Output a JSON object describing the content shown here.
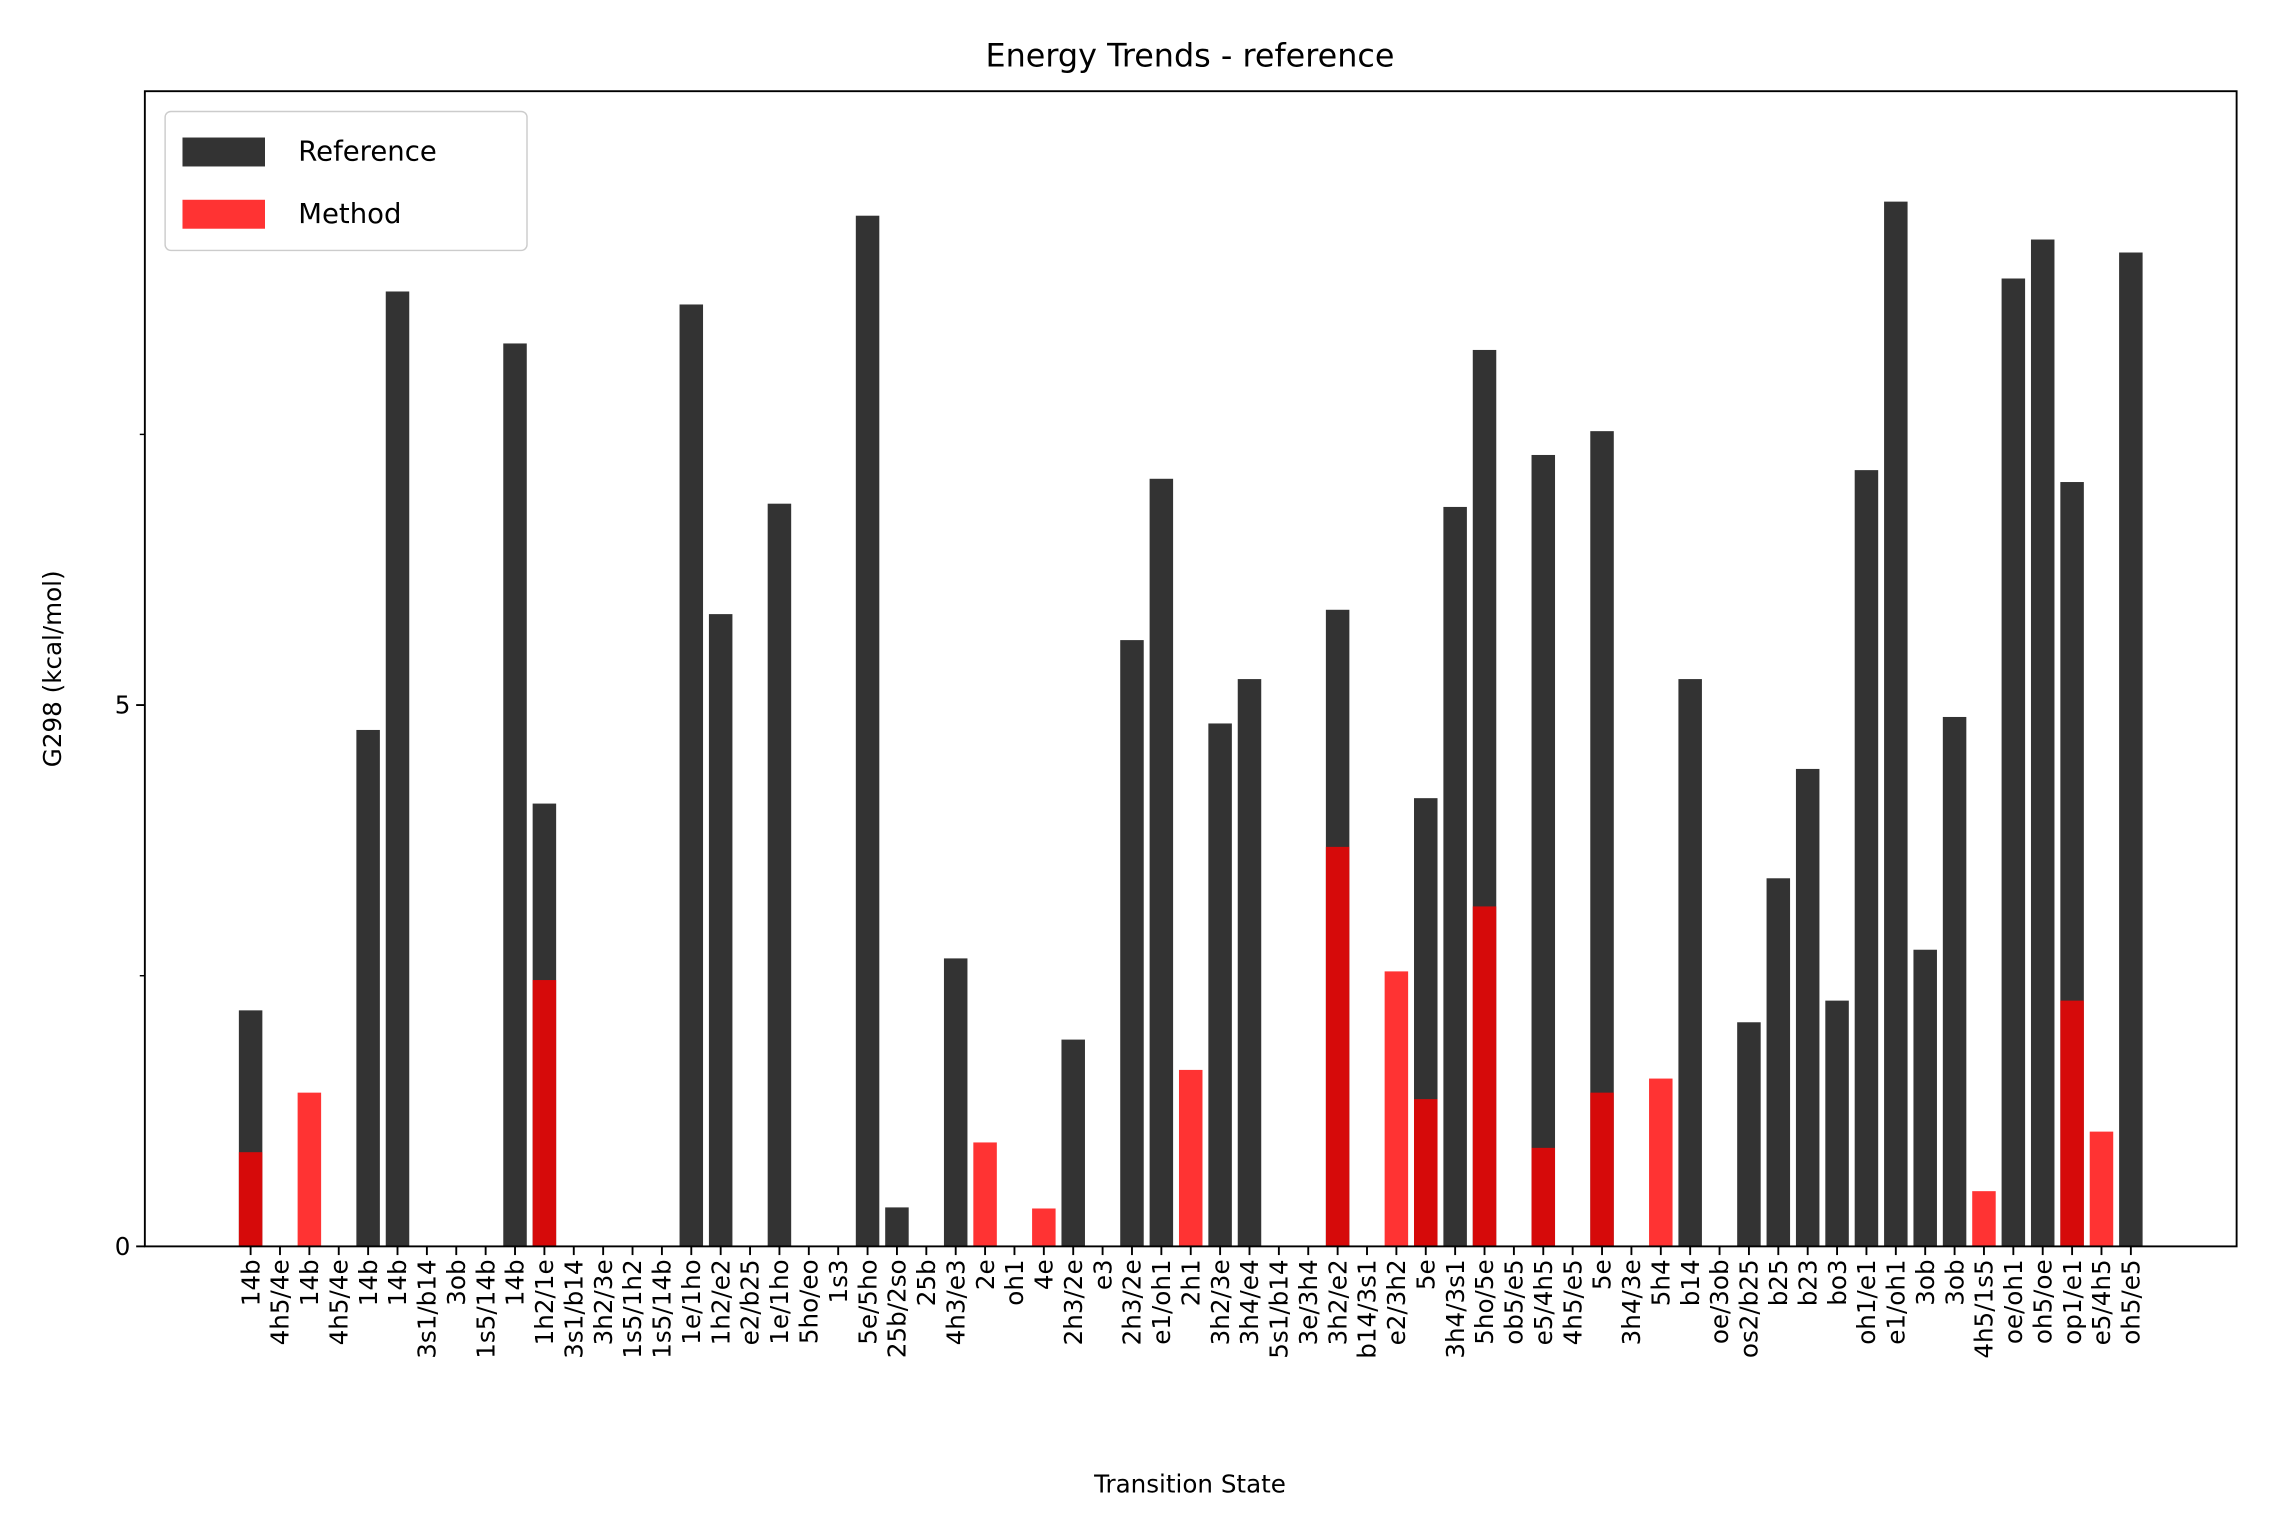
{
  "chart_data": {
    "type": "bar",
    "title": "Energy Trends - reference",
    "x_label": "Transition State",
    "y_label": "G298 (kcal/mol)",
    "categories": [
      "14b",
      "4h5/4e",
      "14b",
      "4h5/4e",
      "14b",
      "14b",
      "3s1/b14",
      "3ob",
      "1s5/14b",
      "14b",
      "1h2/1e",
      "3s1/b14",
      "3h2/3e",
      "1s5/1h2",
      "1s5/14b",
      "1e/1ho",
      "1h2/e2",
      "e2/b25",
      "1e/1ho",
      "5ho/eo",
      "1s3",
      "5e/5ho",
      "25b/2so",
      "25b",
      "4h3/e3",
      "2e",
      "oh1",
      "4e",
      "2h3/2e",
      "e3",
      "2h3/2e",
      "e1/oh1",
      "2h1",
      "3h2/3e",
      "3h4/e4",
      "5s1/b14",
      "3e/3h4",
      "3h2/e2",
      "b14/3s1",
      "e2/3h2",
      "5e",
      "3h4/3s1",
      "5ho/5e",
      "ob5/e5",
      "e5/4h5",
      "4h5/e5",
      "5e",
      "3h4/3e",
      "5h4",
      "b14",
      "oe/3ob",
      "os2/b25",
      "b25",
      "b23",
      "bo3",
      "oh1/e1",
      "e1/oh1",
      "3ob",
      "3ob",
      "4h5/1s5",
      "oe/oh1",
      "oh5/oe",
      "op1/e1",
      "e5/4h5",
      "oh5/e5"
    ],
    "series": [
      {
        "name": "Reference",
        "color": "#000000",
        "alpha": 0.8,
        "values": [
          2.18,
          0,
          0,
          0,
          4.77,
          8.82,
          0,
          0,
          0,
          8.34,
          4.09,
          0,
          0,
          0,
          0,
          8.7,
          5.84,
          0,
          6.86,
          0,
          0,
          9.52,
          0.36,
          0,
          2.66,
          0,
          0,
          0,
          1.91,
          0,
          5.6,
          7.09,
          0,
          4.83,
          5.24,
          0,
          0,
          5.88,
          0,
          0,
          4.14,
          6.83,
          8.28,
          0,
          7.31,
          0,
          7.53,
          0,
          0,
          5.24,
          0,
          2.07,
          3.4,
          4.41,
          2.27,
          7.17,
          9.65,
          2.74,
          4.89,
          0,
          8.94,
          9.3,
          7.06,
          0,
          9.18
        ]
      },
      {
        "name": "Method",
        "color": "#ff0000",
        "alpha": 0.8,
        "values": [
          0.87,
          0,
          1.42,
          0,
          0,
          0,
          0,
          0,
          0,
          0,
          2.46,
          0,
          0,
          0,
          0,
          0,
          0,
          0,
          0,
          0,
          0,
          0,
          0,
          0,
          0,
          0.96,
          0,
          0.35,
          0,
          0,
          0,
          0,
          1.63,
          0,
          0,
          0,
          0,
          3.69,
          0,
          2.54,
          1.36,
          0,
          3.14,
          0,
          0.91,
          0,
          1.42,
          0,
          1.55,
          0,
          0,
          0,
          0,
          0,
          0,
          0,
          0,
          0,
          0,
          0.51,
          0,
          0,
          2.27,
          1.06,
          0
        ]
      }
    ],
    "ylim": [
      0,
      10.67
    ],
    "yticks": [
      0,
      5
    ],
    "minor_yticks": [
      2.5,
      7.5
    ],
    "legend": "upper left"
  }
}
